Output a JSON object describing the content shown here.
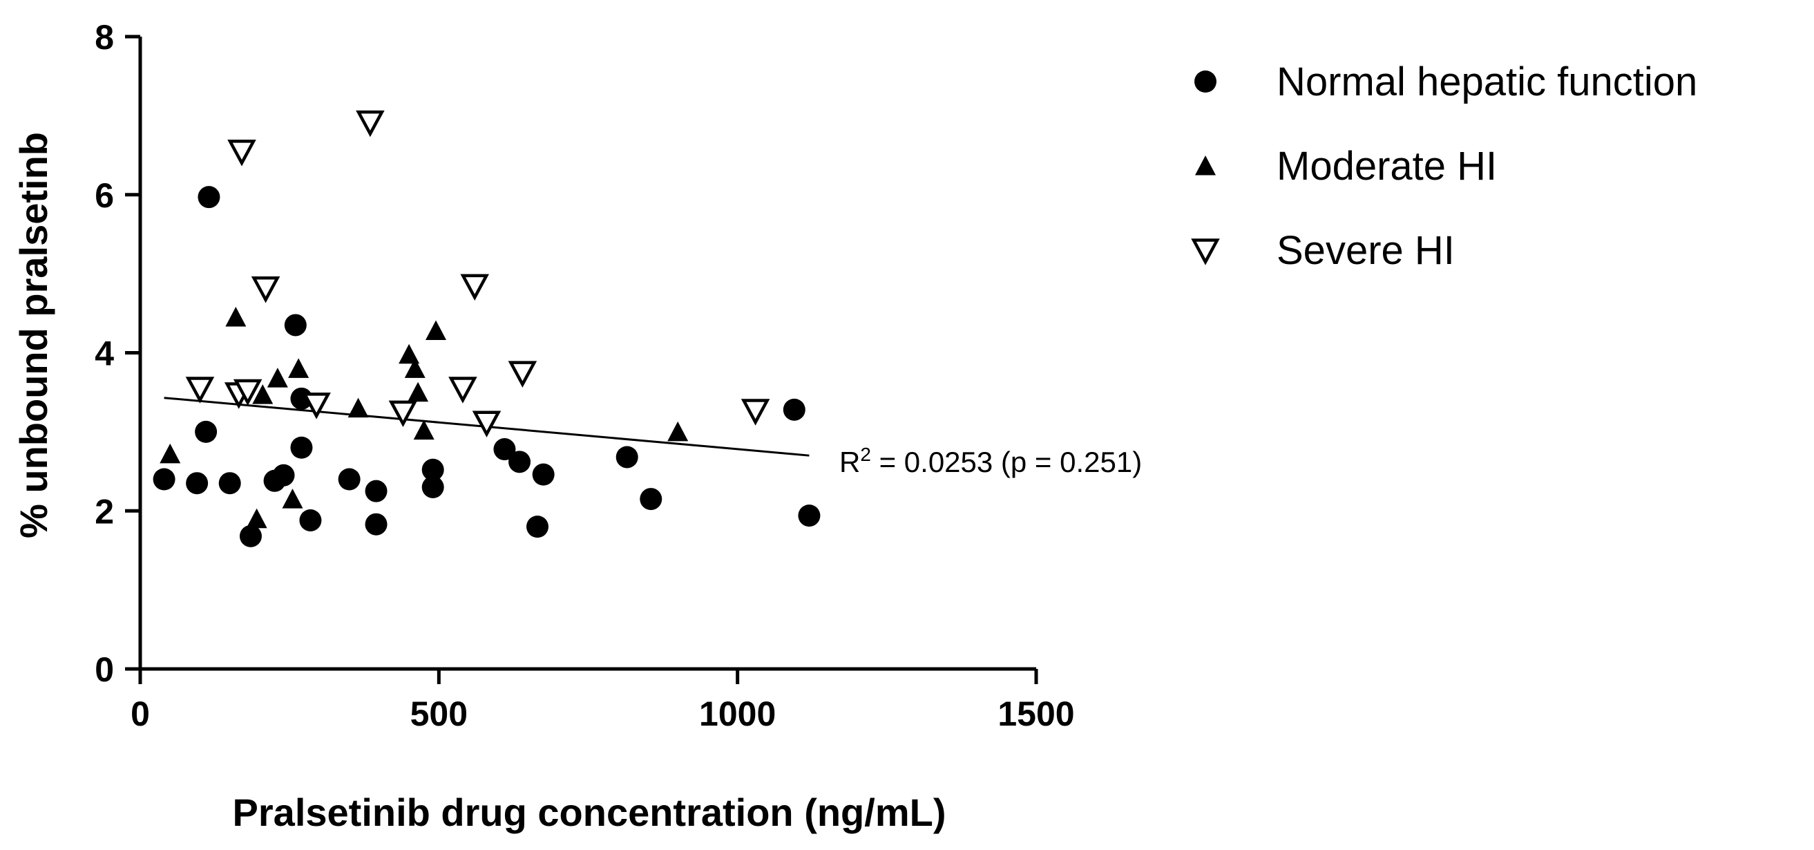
{
  "chart_data": {
    "type": "scatter",
    "xlabel": "Pralsetinib drug concentration (ng/mL)",
    "ylabel": "% unbound pralsetinb",
    "xlim": [
      0,
      1500
    ],
    "ylim": [
      0,
      8
    ],
    "xticks": [
      0,
      500,
      1000,
      1500
    ],
    "yticks": [
      0,
      2,
      4,
      6,
      8
    ],
    "xtick_labels": [
      "0",
      "500",
      "1000",
      "1500"
    ],
    "ytick_labels": [
      "0",
      "2",
      "4",
      "6",
      "8"
    ],
    "grid": false,
    "legend_position": "top-right outside",
    "series": [
      {
        "name": "Normal hepatic function",
        "marker": "circle-filled",
        "color": "#000000",
        "points": [
          [
            40,
            2.4
          ],
          [
            95,
            2.35
          ],
          [
            110,
            3.0
          ],
          [
            115,
            5.97
          ],
          [
            150,
            2.35
          ],
          [
            185,
            1.68
          ],
          [
            225,
            2.38
          ],
          [
            240,
            2.45
          ],
          [
            260,
            4.35
          ],
          [
            270,
            2.8
          ],
          [
            270,
            3.42
          ],
          [
            285,
            1.88
          ],
          [
            350,
            2.4
          ],
          [
            395,
            2.25
          ],
          [
            395,
            1.83
          ],
          [
            490,
            2.52
          ],
          [
            490,
            2.3
          ],
          [
            610,
            2.78
          ],
          [
            635,
            2.62
          ],
          [
            665,
            1.8
          ],
          [
            675,
            2.46
          ],
          [
            815,
            2.68
          ],
          [
            855,
            2.15
          ],
          [
            1095,
            3.28
          ],
          [
            1120,
            1.94
          ]
        ]
      },
      {
        "name": "Moderate HI",
        "marker": "triangle-up-filled",
        "color": "#000000",
        "points": [
          [
            50,
            2.72
          ],
          [
            160,
            4.45
          ],
          [
            195,
            1.9
          ],
          [
            205,
            3.47
          ],
          [
            230,
            3.68
          ],
          [
            255,
            2.15
          ],
          [
            265,
            3.8
          ],
          [
            365,
            3.3
          ],
          [
            450,
            3.98
          ],
          [
            460,
            3.8
          ],
          [
            465,
            3.5
          ],
          [
            475,
            3.02
          ],
          [
            495,
            4.28
          ],
          [
            900,
            3.0
          ]
        ]
      },
      {
        "name": "Severe HI",
        "marker": "triangle-down-open",
        "color": "#000000",
        "points": [
          [
            100,
            3.55
          ],
          [
            165,
            3.48
          ],
          [
            170,
            6.55
          ],
          [
            180,
            3.52
          ],
          [
            210,
            4.82
          ],
          [
            295,
            3.35
          ],
          [
            385,
            6.92
          ],
          [
            440,
            3.25
          ],
          [
            540,
            3.55
          ],
          [
            560,
            4.85
          ],
          [
            580,
            3.12
          ],
          [
            640,
            3.75
          ],
          [
            1030,
            3.27
          ]
        ]
      }
    ],
    "fit_line": {
      "x": [
        40,
        1120
      ],
      "y": [
        3.43,
        2.7
      ]
    },
    "annotation": {
      "r_prefix": "R",
      "r_sup": "2",
      "r_rest": " = 0.0253 (p = 0.251)"
    }
  }
}
